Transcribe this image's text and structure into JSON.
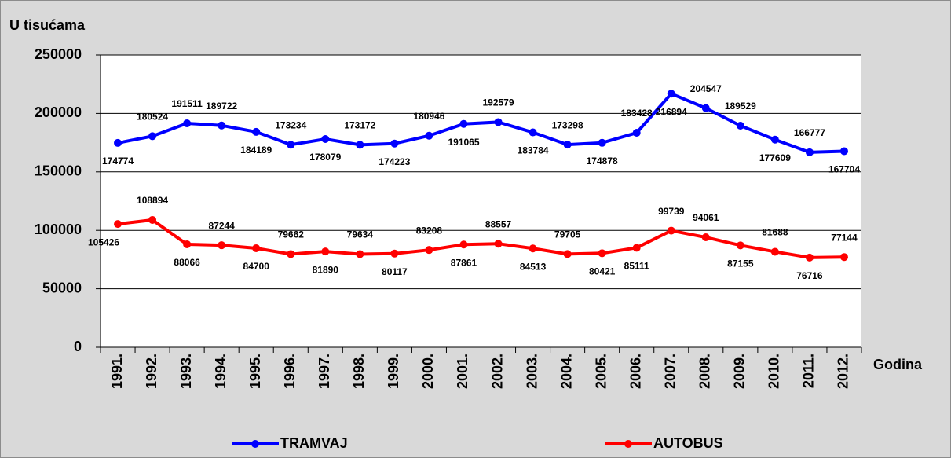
{
  "chart_data": {
    "type": "line",
    "y_axis_label": "U tisućama",
    "x_axis_label": "Godina",
    "categories": [
      "1991.",
      "1992.",
      "1993.",
      "1994.",
      "1995.",
      "1996.",
      "1997.",
      "1998.",
      "1999.",
      "2000.",
      "2001.",
      "2002.",
      "2003.",
      "2004.",
      "2005.",
      "2006.",
      "2007.",
      "2008.",
      "2009.",
      "2010.",
      "2011.",
      "2012."
    ],
    "series": [
      {
        "name": "TRAMVAJ",
        "color": "#0000ff",
        "values": [
          174774,
          180524,
          191511,
          189722,
          184189,
          173234,
          178079,
          173172,
          174223,
          180946,
          191065,
          192579,
          183784,
          173298,
          174878,
          183428,
          216894,
          204547,
          189529,
          177609,
          166777,
          167704
        ]
      },
      {
        "name": "AUTOBUS",
        "color": "#ff0000",
        "values": [
          105426,
          108894,
          88066,
          87244,
          84700,
          79662,
          81890,
          79634,
          80117,
          83208,
          87861,
          88557,
          84513,
          79705,
          80421,
          85111,
          99739,
          94061,
          87155,
          81688,
          76716,
          77144
        ]
      }
    ],
    "ylim": [
      0,
      250000
    ],
    "yticks": [
      0,
      50000,
      100000,
      150000,
      200000,
      250000
    ],
    "grid": true,
    "legend": "bottom"
  }
}
